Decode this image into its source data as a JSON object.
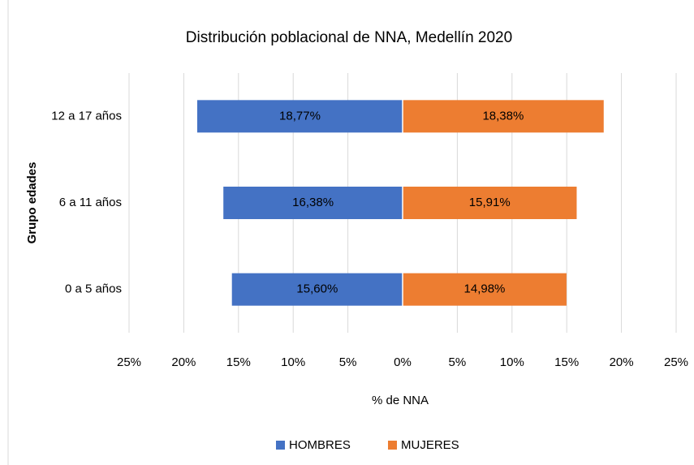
{
  "chart_data": {
    "type": "bar",
    "orientation": "horizontal",
    "title": "Distribución poblacional de NNA, Medellín 2020",
    "x_label": "% de NNA",
    "y_label": "Grupo edades",
    "categories": [
      "12 a 17 años",
      "6 a 11 años",
      "0 a 5 años"
    ],
    "series": [
      {
        "name": "HOMBRES",
        "color": "#4472c4",
        "values": [
          -18.77,
          -16.38,
          -15.6
        ],
        "value_labels": [
          "18,77%",
          "16,38%",
          "15,60%"
        ]
      },
      {
        "name": "MUJERES",
        "color": "#ed7d31",
        "values": [
          18.38,
          15.91,
          14.98
        ],
        "value_labels": [
          "18,38%",
          "15,91%",
          "14,98%"
        ]
      }
    ],
    "xlim": [
      -25,
      25
    ],
    "xticks": [
      {
        "value": -25,
        "label": "25%"
      },
      {
        "value": -20,
        "label": "20%"
      },
      {
        "value": -15,
        "label": "15%"
      },
      {
        "value": -10,
        "label": "10%"
      },
      {
        "value": -5,
        "label": "5%"
      },
      {
        "value": 0,
        "label": "0%"
      },
      {
        "value": 5,
        "label": "5%"
      },
      {
        "value": 10,
        "label": "10%"
      },
      {
        "value": 15,
        "label": "15%"
      },
      {
        "value": 20,
        "label": "20%"
      },
      {
        "value": 25,
        "label": "25%"
      }
    ],
    "grid": true,
    "legend": "bottom"
  }
}
